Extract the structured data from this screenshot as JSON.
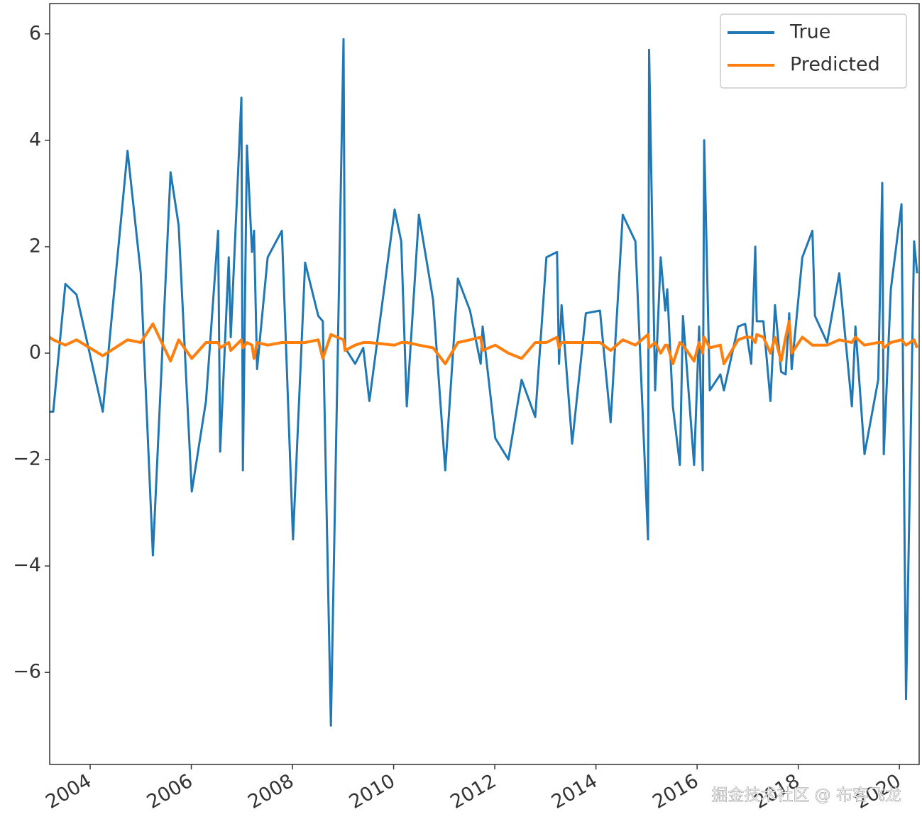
{
  "chart_data": {
    "type": "line",
    "x": [
      2003.2,
      2003.27,
      2003.51,
      2003.73,
      2004.25,
      2004.74,
      2005.0,
      2005.24,
      2005.59,
      2005.75,
      2006.01,
      2006.29,
      2006.53,
      2006.57,
      2006.74,
      2006.78,
      2006.99,
      2007.02,
      2007.1,
      2007.2,
      2007.24,
      2007.3,
      2007.51,
      2007.79,
      2008.01,
      2008.25,
      2008.51,
      2008.6,
      2008.76,
      2009.01,
      2009.04,
      2009.24,
      2009.4,
      2009.52,
      2010.02,
      2010.15,
      2010.26,
      2010.5,
      2010.78,
      2011.02,
      2011.27,
      2011.51,
      2011.72,
      2011.76,
      2012.01,
      2012.27,
      2012.53,
      2012.8,
      2013.02,
      2013.23,
      2013.27,
      2013.32,
      2013.53,
      2013.8,
      2014.08,
      2014.29,
      2014.53,
      2014.78,
      2015.03,
      2015.05,
      2015.17,
      2015.28,
      2015.37,
      2015.41,
      2015.52,
      2015.66,
      2015.72,
      2015.94,
      2016.04,
      2016.11,
      2016.14,
      2016.25,
      2016.46,
      2016.53,
      2016.81,
      2016.95,
      2017.07,
      2017.15,
      2017.18,
      2017.31,
      2017.45,
      2017.54,
      2017.66,
      2017.75,
      2017.82,
      2017.87,
      2018.08,
      2018.28,
      2018.33,
      2018.57,
      2018.81,
      2019.06,
      2019.13,
      2019.31,
      2019.58,
      2019.66,
      2019.69,
      2019.83,
      2020.04,
      2020.13,
      2020.29,
      2020.35
    ],
    "series": [
      {
        "name": "True",
        "color": "#1f77b4",
        "values": [
          -1.1,
          -1.1,
          1.3,
          1.1,
          -1.1,
          3.8,
          1.5,
          -3.8,
          3.4,
          2.4,
          -2.6,
          -0.9,
          2.3,
          -1.85,
          1.8,
          0.3,
          4.8,
          -2.2,
          3.9,
          1.9,
          2.3,
          -0.3,
          1.8,
          2.3,
          -3.5,
          1.7,
          0.7,
          0.6,
          -7.0,
          5.9,
          0.1,
          -0.2,
          0.1,
          -0.9,
          2.7,
          2.1,
          -1.0,
          2.6,
          1.0,
          -2.2,
          1.4,
          0.8,
          -0.2,
          0.5,
          -1.6,
          -2.0,
          -0.5,
          -1.2,
          1.8,
          1.9,
          -0.2,
          0.9,
          -1.7,
          0.75,
          0.8,
          -1.3,
          2.6,
          2.1,
          -3.5,
          5.7,
          -0.7,
          1.8,
          0.8,
          1.2,
          -1.0,
          -2.1,
          0.7,
          -2.1,
          0.5,
          -2.2,
          4.0,
          -0.7,
          -0.4,
          -0.7,
          0.5,
          0.55,
          -0.2,
          2.0,
          0.6,
          0.6,
          -0.9,
          0.9,
          -0.35,
          -0.4,
          0.75,
          -0.3,
          1.8,
          2.3,
          0.7,
          0.2,
          1.5,
          -1.0,
          0.5,
          -1.9,
          -0.5,
          3.2,
          -1.9,
          1.2,
          2.8,
          -6.5,
          2.1,
          1.5
        ]
      },
      {
        "name": "Predicted",
        "color": "#ff7f0e",
        "values": [
          0.3,
          0.25,
          0.15,
          0.25,
          -0.05,
          0.25,
          0.2,
          0.55,
          -0.15,
          0.25,
          -0.1,
          0.2,
          0.2,
          0.1,
          0.2,
          0.05,
          0.25,
          0.1,
          0.2,
          0.15,
          -0.1,
          0.2,
          0.15,
          0.2,
          0.2,
          0.2,
          0.25,
          -0.1,
          0.35,
          0.25,
          0.05,
          0.15,
          0.2,
          0.2,
          0.15,
          0.2,
          0.2,
          0.15,
          0.1,
          -0.2,
          0.2,
          0.25,
          0.3,
          0.05,
          0.15,
          0.0,
          -0.1,
          0.2,
          0.2,
          0.3,
          0.1,
          0.2,
          0.2,
          0.2,
          0.2,
          0.05,
          0.25,
          0.15,
          0.35,
          0.1,
          0.2,
          0.0,
          0.15,
          0.15,
          -0.2,
          0.2,
          0.15,
          -0.15,
          0.2,
          0.0,
          0.3,
          0.1,
          0.15,
          -0.2,
          0.25,
          0.3,
          0.3,
          0.2,
          0.35,
          0.3,
          0.0,
          0.3,
          -0.15,
          0.3,
          0.6,
          0.0,
          0.3,
          0.15,
          0.15,
          0.15,
          0.25,
          0.2,
          0.3,
          0.15,
          0.2,
          0.2,
          0.1,
          0.2,
          0.25,
          0.15,
          0.25,
          0.1
        ]
      }
    ],
    "xlim": [
      2003.2,
      2020.39
    ],
    "xticks": [
      2004,
      2006,
      2008,
      2010,
      2012,
      2014,
      2016,
      2018,
      2020
    ],
    "ylim": [
      -7.73,
      6.57
    ],
    "yticks": [
      {
        "value": -6,
        "label": "−6"
      },
      {
        "value": -4,
        "label": "−4"
      },
      {
        "value": -2,
        "label": "−2"
      },
      0,
      2,
      4,
      6
    ],
    "legend": "upper right"
  },
  "watermark": "掘金技术社区 @ 布客飞龙"
}
